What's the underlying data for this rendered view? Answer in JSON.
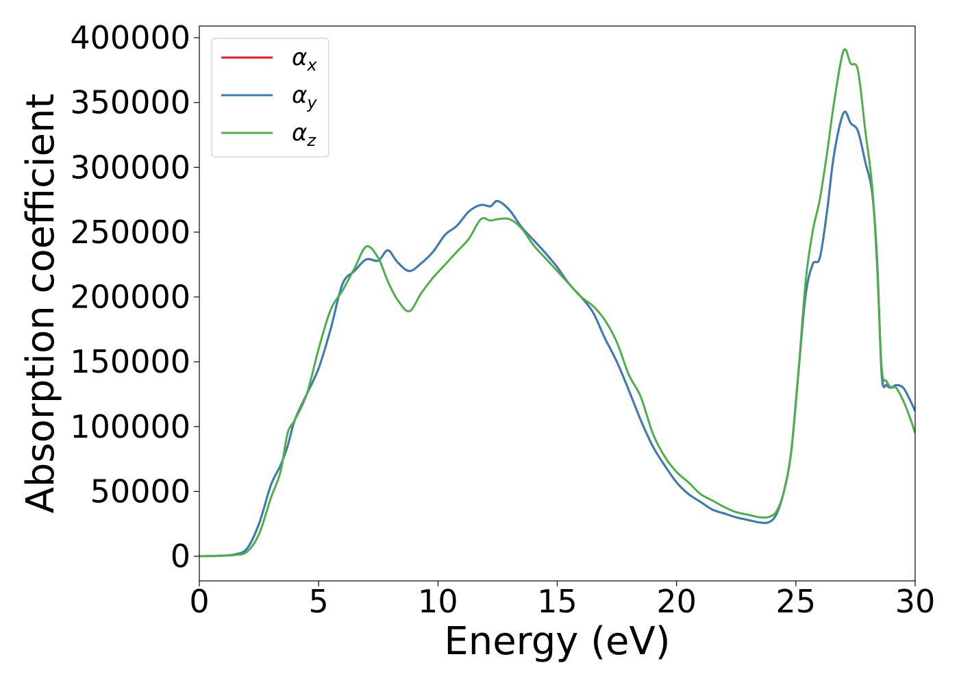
{
  "chart_data": {
    "type": "line",
    "title": "",
    "xlabel": "Energy (eV)",
    "ylabel": "Absorption coefficient",
    "xlim": [
      0,
      30
    ],
    "ylim": [
      -19000,
      409000
    ],
    "xticks": [
      0,
      5,
      10,
      15,
      20,
      25,
      30
    ],
    "yticks": [
      0,
      50000,
      100000,
      150000,
      200000,
      250000,
      300000,
      350000,
      400000
    ],
    "grid": false,
    "legend": {
      "placement": "top-left",
      "entries": [
        {
          "symbol": "α",
          "sub": "x",
          "color": "#e41a1c"
        },
        {
          "symbol": "α",
          "sub": "y",
          "color": "#377eb8"
        },
        {
          "symbol": "α",
          "sub": "z",
          "color": "#4daf4a"
        }
      ]
    },
    "series": [
      {
        "key": "x",
        "color": "#e41a1c",
        "x": [
          0,
          1,
          1.5,
          2,
          2.5,
          3,
          3.4,
          3.7,
          4,
          4.5,
          5,
          5.5,
          6,
          6.5,
          7,
          7.5,
          7.9,
          8.3,
          8.8,
          9.3,
          9.8,
          10.3,
          10.8,
          11.3,
          11.8,
          12.2,
          12.5,
          13,
          13.5,
          14,
          14.5,
          15,
          15.5,
          16,
          16.5,
          17,
          17.5,
          18,
          18.5,
          19,
          19.5,
          20,
          20.5,
          21,
          21.5,
          22,
          22.5,
          23,
          23.5,
          23.9,
          24.2,
          24.5,
          24.8,
          25.1,
          25.4,
          25.7,
          26,
          26.3,
          26.6,
          27,
          27.3,
          27.6,
          27.9,
          28.2,
          28.4,
          28.6,
          28.8,
          29,
          29.2,
          29.5,
          29.8,
          30
        ],
        "y": [
          0,
          500,
          1500,
          6000,
          25000,
          55000,
          70000,
          85000,
          105000,
          125000,
          145000,
          175000,
          210000,
          220000,
          229000,
          228000,
          236000,
          227000,
          220000,
          226000,
          235000,
          248000,
          255000,
          266000,
          271000,
          270000,
          274000,
          267000,
          254000,
          244000,
          234000,
          223000,
          210000,
          200000,
          188000,
          168000,
          150000,
          128000,
          105000,
          85000,
          70000,
          57000,
          48000,
          42000,
          36000,
          33000,
          30000,
          28000,
          26000,
          26500,
          33000,
          50000,
          80000,
          140000,
          200000,
          225000,
          230000,
          265000,
          310000,
          342000,
          334000,
          328000,
          305000,
          280000,
          230000,
          140000,
          132000,
          130000,
          132000,
          130000,
          120000,
          112000
        ]
      },
      {
        "key": "y",
        "color": "#377eb8",
        "x": [
          0,
          1,
          1.5,
          2,
          2.5,
          3,
          3.4,
          3.7,
          4,
          4.5,
          5,
          5.5,
          6,
          6.5,
          7,
          7.5,
          7.9,
          8.3,
          8.8,
          9.3,
          9.8,
          10.3,
          10.8,
          11.3,
          11.8,
          12.2,
          12.5,
          13,
          13.5,
          14,
          14.5,
          15,
          15.5,
          16,
          16.5,
          17,
          17.5,
          18,
          18.5,
          19,
          19.5,
          20,
          20.5,
          21,
          21.5,
          22,
          22.5,
          23,
          23.5,
          23.9,
          24.2,
          24.5,
          24.8,
          25.1,
          25.4,
          25.7,
          26,
          26.3,
          26.6,
          27,
          27.3,
          27.6,
          27.9,
          28.2,
          28.4,
          28.6,
          28.8,
          29,
          29.2,
          29.5,
          29.8,
          30
        ],
        "y": [
          0,
          500,
          1500,
          6000,
          25000,
          55000,
          70000,
          85000,
          105000,
          125000,
          145000,
          175000,
          210000,
          220000,
          229000,
          228000,
          236000,
          227000,
          220000,
          226000,
          235000,
          248000,
          255000,
          266000,
          271000,
          270000,
          274000,
          267000,
          254000,
          244000,
          234000,
          223000,
          210000,
          200000,
          188000,
          168000,
          150000,
          128000,
          105000,
          85000,
          70000,
          57000,
          48000,
          42000,
          36000,
          33000,
          30000,
          28000,
          26000,
          26500,
          33000,
          50000,
          80000,
          140000,
          200000,
          225000,
          230000,
          265000,
          310000,
          342000,
          334000,
          328000,
          305000,
          280000,
          230000,
          140000,
          132000,
          130000,
          132000,
          130000,
          120000,
          112000
        ]
      },
      {
        "key": "z",
        "color": "#4daf4a",
        "x": [
          0,
          1,
          1.5,
          2,
          2.5,
          3,
          3.4,
          3.7,
          4,
          4.5,
          5,
          5.5,
          6,
          6.5,
          7,
          7.5,
          7.9,
          8.3,
          8.8,
          9.3,
          9.8,
          10.3,
          10.8,
          11.3,
          11.8,
          12.2,
          12.5,
          13,
          13.5,
          14,
          14.5,
          15,
          15.5,
          16,
          16.5,
          17,
          17.5,
          18,
          18.5,
          19,
          19.5,
          20,
          20.5,
          21,
          21.5,
          22,
          22.5,
          23,
          23.5,
          23.9,
          24.2,
          24.5,
          24.8,
          25.1,
          25.4,
          25.7,
          26,
          26.3,
          26.6,
          27,
          27.3,
          27.6,
          27.9,
          28.2,
          28.4,
          28.6,
          28.8,
          29,
          29.2,
          29.5,
          29.8,
          30
        ],
        "y": [
          0,
          500,
          1000,
          3500,
          17000,
          45000,
          65000,
          95000,
          105000,
          125000,
          160000,
          190000,
          205000,
          222000,
          239000,
          230000,
          212000,
          198000,
          189000,
          203000,
          215000,
          225000,
          235000,
          245000,
          260000,
          259000,
          260000,
          260000,
          253000,
          240000,
          230000,
          220000,
          210000,
          200000,
          193000,
          182000,
          165000,
          140000,
          123000,
          95000,
          77000,
          65000,
          57000,
          48000,
          43000,
          38000,
          34000,
          32000,
          30000,
          30500,
          35000,
          50000,
          80000,
          140000,
          210000,
          250000,
          275000,
          310000,
          350000,
          390000,
          380000,
          375000,
          330000,
          285000,
          225000,
          145000,
          135000,
          130000,
          130000,
          120000,
          106000,
          95000
        ]
      }
    ]
  }
}
